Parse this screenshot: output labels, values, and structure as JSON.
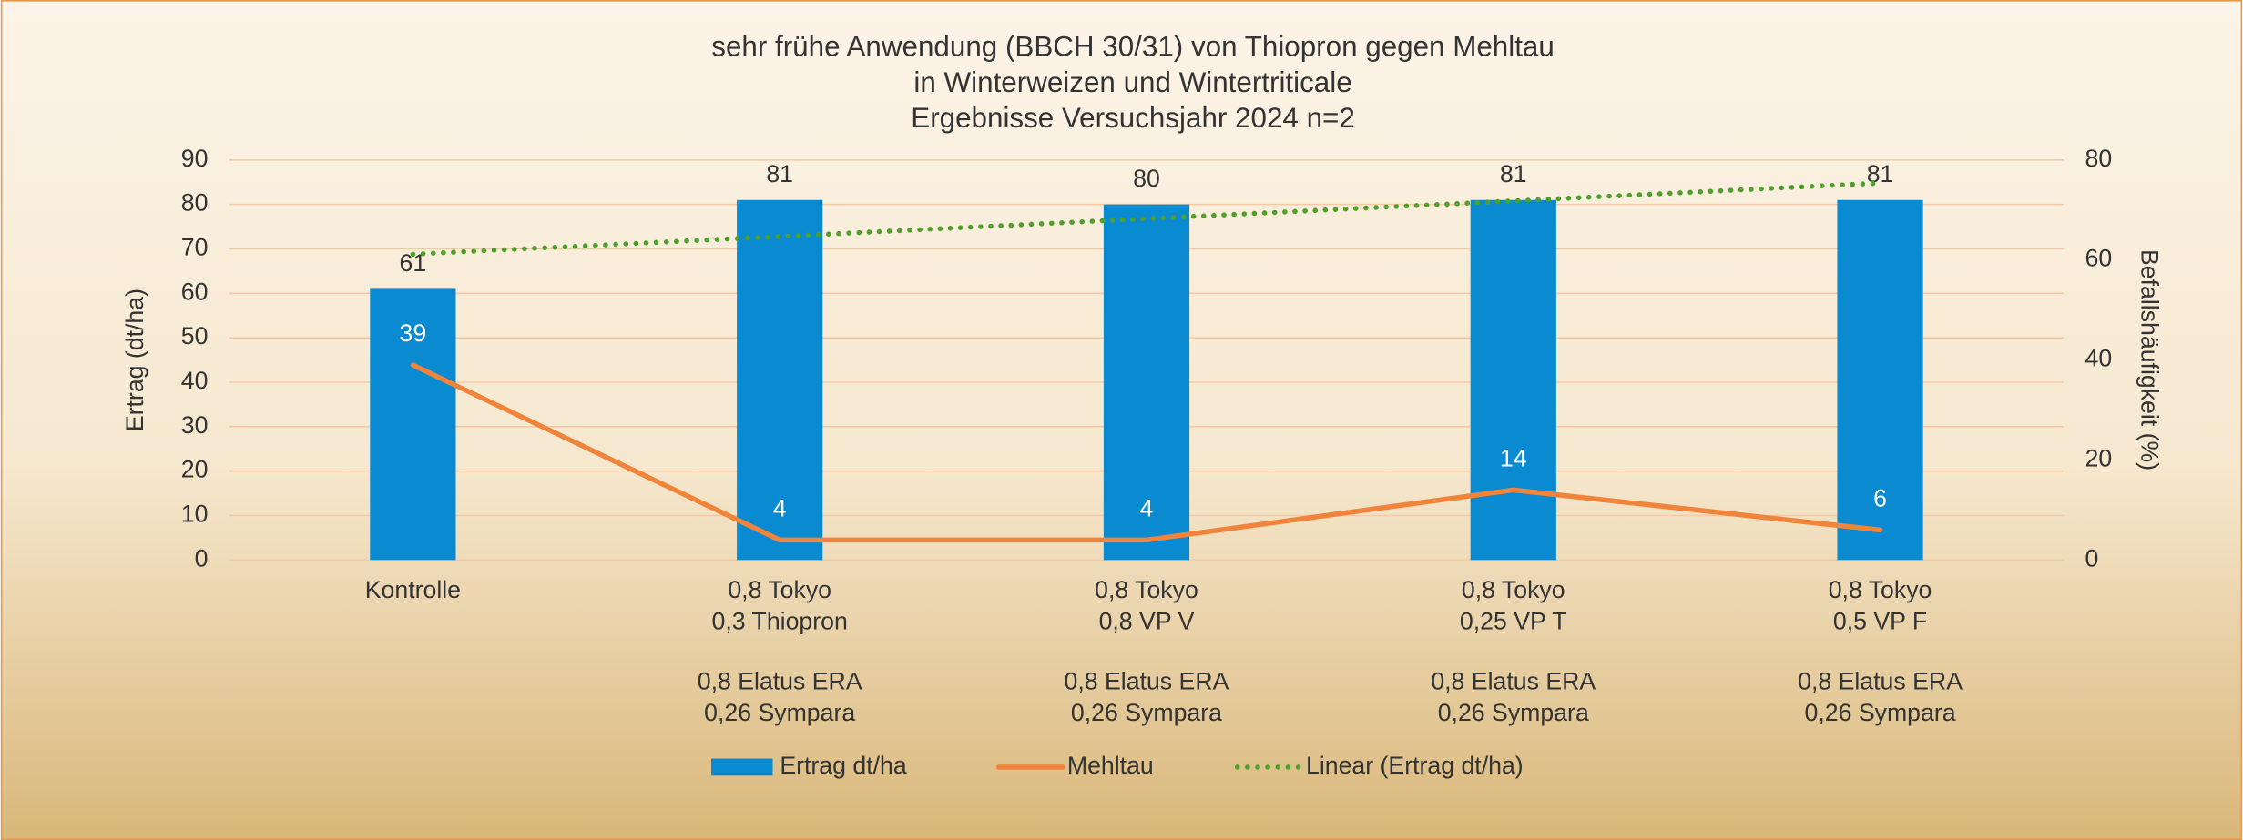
{
  "chart_data": {
    "type": "bar-line",
    "title": [
      "sehr frühe Anwendung (BBCH 30/31) von Thiopron gegen Mehltau",
      "in Winterweizen und Wintertriticale",
      "Ergebnisse Versuchsjahr 2024 n=2"
    ],
    "ylabel": "Ertrag (dt/ha)",
    "y2label": "Befallshäufigkeit (%)",
    "categories": [
      [
        [
          "Kontrolle"
        ]
      ],
      [
        [
          "0,8 Tokyo",
          "0,3 Thiopron"
        ],
        [
          "0,8 Elatus ERA",
          "0,26 Sympara"
        ]
      ],
      [
        [
          "0,8 Tokyo",
          "0,8 VP V"
        ],
        [
          "0,8 Elatus ERA",
          "0,26 Sympara"
        ]
      ],
      [
        [
          "0,8 Tokyo",
          "0,25 VP T"
        ],
        [
          "0,8 Elatus ERA",
          "0,26 Sympara"
        ]
      ],
      [
        [
          "0,8 Tokyo",
          "0,5 VP F"
        ],
        [
          "0,8 Elatus ERA",
          "0,26 Sympara"
        ]
      ]
    ],
    "series": [
      {
        "name": "Ertrag dt/ha",
        "kind": "bar",
        "color": "#0a8ad0",
        "values": [
          61,
          81,
          80,
          81,
          81
        ]
      },
      {
        "name": "Mehltau",
        "kind": "line",
        "axis": "y2",
        "color": "#f0843a",
        "values": [
          39,
          4,
          4,
          14,
          6
        ]
      },
      {
        "name": "Linear (Ertrag dt/ha)",
        "kind": "trend",
        "color": "#4fa02a",
        "values": [
          68.8,
          72.8,
          76.8,
          80.8,
          84.8
        ]
      }
    ],
    "ylim": [
      0,
      90
    ],
    "yticks": [
      0,
      10,
      20,
      30,
      40,
      50,
      60,
      70,
      80,
      90
    ],
    "y2lim": [
      0,
      80
    ],
    "y2ticks": [
      0,
      20,
      40,
      60,
      80
    ],
    "grid": true
  }
}
